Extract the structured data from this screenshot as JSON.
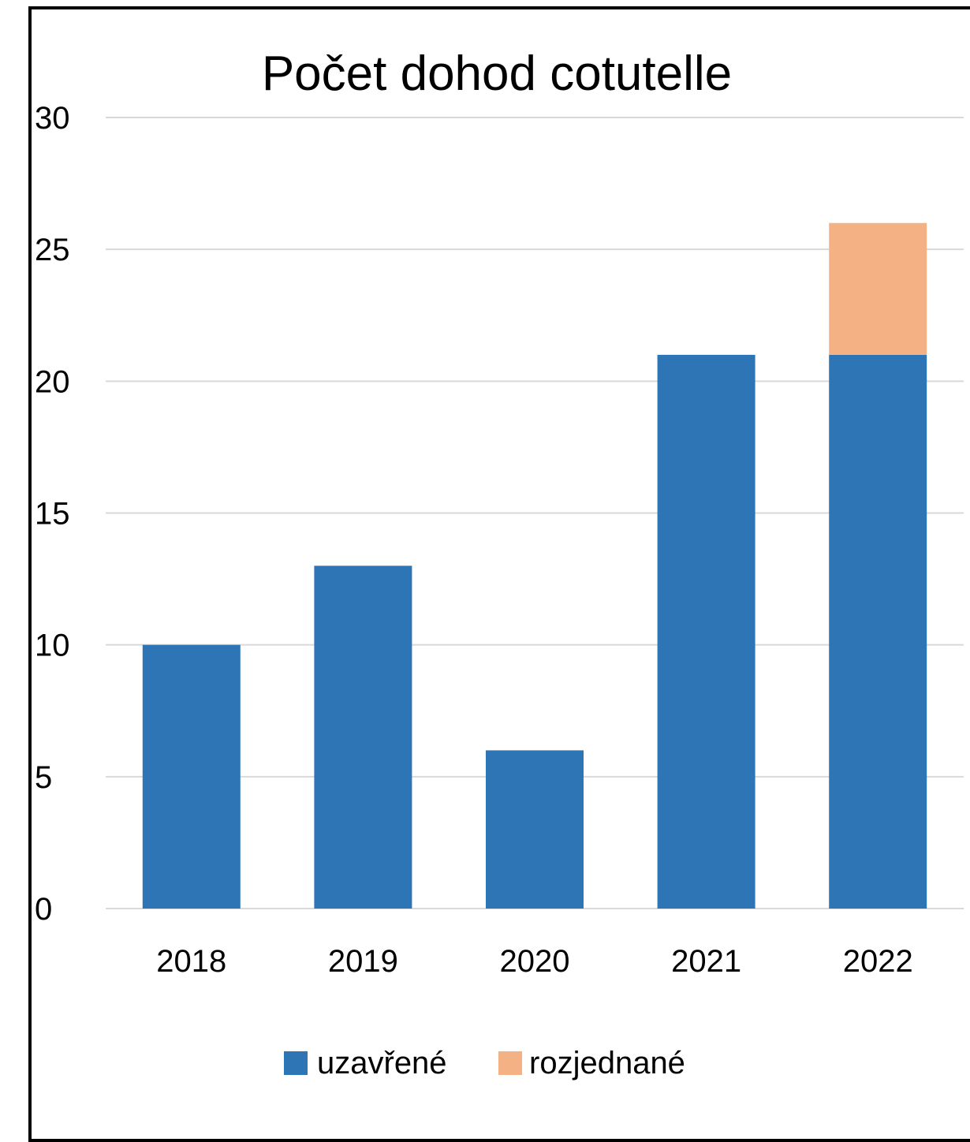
{
  "chart_data": {
    "type": "bar",
    "stacked": true,
    "title": "Počet dohod cotutelle",
    "xlabel": "",
    "ylabel": "",
    "categories": [
      "2018",
      "2019",
      "2020",
      "2021",
      "2022"
    ],
    "series": [
      {
        "name": "uzavřené",
        "values": [
          10,
          13,
          6,
          21,
          21
        ],
        "color": "#2E75B6"
      },
      {
        "name": "rozjednané",
        "values": [
          0,
          0,
          0,
          0,
          5
        ],
        "color": "#F4B183"
      }
    ],
    "ylim": [
      0,
      30
    ],
    "yticks": [
      0,
      5,
      10,
      15,
      20,
      25,
      30
    ],
    "grid": true,
    "gridColor": "#D9D9D9",
    "legend": "bottom"
  }
}
